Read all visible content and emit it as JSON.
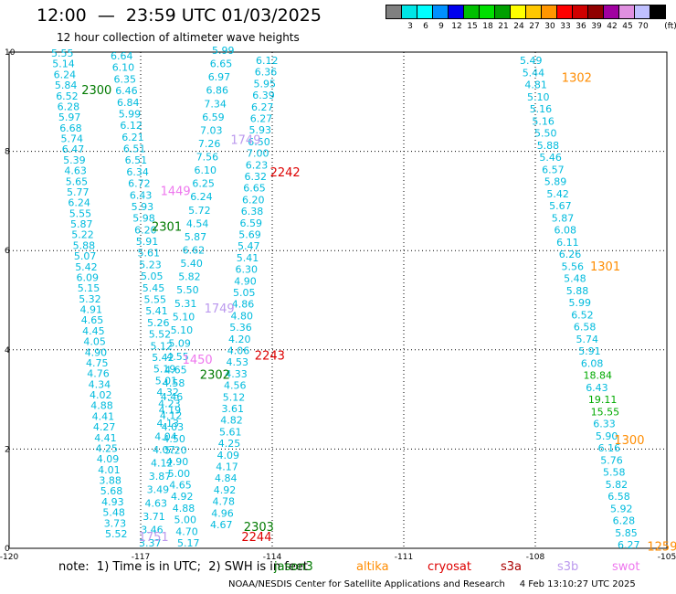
{
  "header": {
    "title": "12:00  —  23:59 UTC 01/03/2025",
    "subtitle": "12 hour collection of altimeter wave heights"
  },
  "legend": {
    "unit_label": "(ft)",
    "bins": [
      {
        "label": "",
        "color": "#808080"
      },
      {
        "label": "3",
        "color": "#00e6e6"
      },
      {
        "label": "6",
        "color": "#00ffff"
      },
      {
        "label": "9",
        "color": "#0090ff"
      },
      {
        "label": "12",
        "color": "#0000ee"
      },
      {
        "label": "15",
        "color": "#00c000"
      },
      {
        "label": "18",
        "color": "#00e000"
      },
      {
        "label": "21",
        "color": "#00a000"
      },
      {
        "label": "24",
        "color": "#ffff00"
      },
      {
        "label": "27",
        "color": "#ffc800"
      },
      {
        "label": "30",
        "color": "#ff9600"
      },
      {
        "label": "33",
        "color": "#ff0000"
      },
      {
        "label": "36",
        "color": "#d00000"
      },
      {
        "label": "39",
        "color": "#900000"
      },
      {
        "label": "42",
        "color": "#a000a0"
      },
      {
        "label": "45",
        "color": "#e090e0"
      },
      {
        "label": "70",
        "color": "#c0c0ff"
      },
      {
        "label": "",
        "color": "#000000"
      }
    ]
  },
  "axes": {
    "x_ticks": [
      "-120",
      "-117",
      "-114",
      "-111",
      "-108",
      "-105"
    ],
    "y_ticks": [
      "0",
      "2",
      "4",
      "6",
      "8",
      "10"
    ]
  },
  "colors": {
    "swh": "#00bbdd",
    "pass_green": "#007a00",
    "pass_red": "#dd0000",
    "pass_orange": "#ff8c00",
    "pass_pink": "#ee77ee",
    "pass_lavender": "#bb99ee",
    "high_green": "#00aa00"
  },
  "track_labels": {
    "left": [
      "5.55",
      "5.14",
      "6.24",
      "5.84",
      "6.52",
      "6.28",
      "5.97",
      "6.68",
      "5.74",
      "6.47",
      "5.39",
      "4.63",
      "5.65",
      "5.77",
      "6.24",
      "5.55",
      "5.87",
      "5.22",
      "5.88",
      "5.07",
      "5.42",
      "6.09",
      "5.15",
      "5.32",
      "4.91",
      "4.65",
      "4.45",
      "4.05",
      "4.90",
      "4.75",
      "4.76",
      "4.34",
      "4.02",
      "4.88",
      "4.41",
      "4.27",
      "4.41",
      "4.25",
      "4.09",
      "4.01",
      "3.88",
      "5.68",
      "4.93",
      "5.48",
      "3.73",
      "5.52"
    ],
    "middle": [
      "6.64",
      "6.10",
      "6.35",
      "6.46",
      "6.84",
      "5.99",
      "6.12",
      "6.21",
      "6.51",
      "6.51",
      "6.34",
      "6.72",
      "6.43",
      "5.93",
      "5.98",
      "6.20",
      "5.91",
      "5.61",
      "5.23",
      "5.05",
      "5.45",
      "5.55",
      "5.41",
      "5.26",
      "5.52",
      "5.12",
      "5.42",
      "5.19",
      "5.01",
      "4.32",
      "4.23",
      "4.12",
      "4.03",
      "4.50",
      "5.20",
      "4.90",
      "5.00",
      "4.65",
      "4.92",
      "4.88",
      "5.00",
      "4.70",
      "5.17"
    ],
    "center": [
      "5.99",
      "6.65",
      "6.97",
      "6.86",
      "7.34",
      "6.59",
      "7.03",
      "7.26",
      "7.56",
      "6.10",
      "6.25",
      "6.24",
      "5.72",
      "4.54",
      "5.87",
      "6.62",
      "5.40",
      "5.82",
      "5.50",
      "5.31",
      "5.10",
      "5.10",
      "5.09",
      "4.55",
      "4.65",
      "4.58",
      "4.46",
      "4.19",
      "4.13",
      "4.04",
      "4.07",
      "4.12",
      "3.87",
      "3.49",
      "4.63",
      "3.71",
      "3.46",
      "3.37"
    ],
    "right": [
      "6.12",
      "6.36",
      "5.95",
      "6.39",
      "6.27",
      "6.27",
      "5.93",
      "6.50",
      "7.00",
      "6.23",
      "6.32",
      "6.65",
      "6.20",
      "6.38",
      "6.59",
      "5.69",
      "5.47",
      "5.41",
      "6.30",
      "4.90",
      "5.05",
      "4.86",
      "4.80",
      "5.36",
      "4.20",
      "4.06",
      "4.53",
      "4.33",
      "4.56",
      "5.12",
      "3.61",
      "4.82",
      "5.61",
      "4.25",
      "4.09",
      "4.17",
      "4.84",
      "4.92",
      "4.78",
      "4.96",
      "4.67"
    ],
    "east": [
      "5.49",
      "5.44",
      "4.81",
      "5.10",
      "5.16",
      "5.16",
      "5.50",
      "5.88",
      "5.46",
      "6.57",
      "5.89",
      "5.42",
      "5.67",
      "5.87",
      "6.08",
      "6.11",
      "6.26",
      "5.56",
      "5.48",
      "5.88",
      "5.99",
      "6.52",
      "6.58",
      "5.74",
      "5.91",
      "6.08",
      "18.84",
      "6.43",
      "19.11",
      "15.55",
      "6.33",
      "5.90",
      "6.16",
      "5.76",
      "5.58",
      "5.82",
      "6.58",
      "5.92",
      "6.28",
      "5.85",
      "6.27"
    ]
  },
  "pass_labels": [
    {
      "text": "2300",
      "lon": -118.35,
      "lat": 9.15,
      "color": "green"
    },
    {
      "text": "2301",
      "lon": -116.75,
      "lat": 6.4,
      "color": "green"
    },
    {
      "text": "2302",
      "lon": -115.65,
      "lat": 3.42,
      "color": "green"
    },
    {
      "text": "2303",
      "lon": -114.65,
      "lat": 0.35,
      "color": "green"
    },
    {
      "text": "1449",
      "lon": -116.55,
      "lat": 7.12,
      "color": "pink"
    },
    {
      "text": "1450",
      "lon": -116.05,
      "lat": 3.72,
      "color": "pink"
    },
    {
      "text": "1749",
      "lon": -114.95,
      "lat": 8.15,
      "color": "lavender"
    },
    {
      "text": "1749",
      "lon": -115.55,
      "lat": 4.75,
      "color": "lavender"
    },
    {
      "text": "1751",
      "lon": -117.05,
      "lat": 0.15,
      "color": "lavender"
    },
    {
      "text": "2242",
      "lon": -114.05,
      "lat": 7.5,
      "color": "red"
    },
    {
      "text": "2243",
      "lon": -114.4,
      "lat": 3.8,
      "color": "red"
    },
    {
      "text": "2244",
      "lon": -114.7,
      "lat": 0.15,
      "color": "red"
    },
    {
      "text": "1302",
      "lon": -107.4,
      "lat": 9.4,
      "color": "orange"
    },
    {
      "text": "1301",
      "lon": -106.75,
      "lat": 5.6,
      "color": "orange"
    },
    {
      "text": "1300",
      "lon": -106.2,
      "lat": 2.1,
      "color": "orange"
    },
    {
      "text": "1259",
      "lon": -105.45,
      "lat": -0.05,
      "color": "orange"
    }
  ],
  "note": "note:  1) Time is in UTC;  2) SWH is in feet",
  "satellites": [
    {
      "name": "jason3",
      "color": "#007a00"
    },
    {
      "name": "altika",
      "color": "#ff8c00"
    },
    {
      "name": "cryosat",
      "color": "#dd0000"
    },
    {
      "name": "s3a",
      "color": "#aa0000"
    },
    {
      "name": "s3b",
      "color": "#bb99ee"
    },
    {
      "name": "swot",
      "color": "#ee77ee"
    }
  ],
  "footer": "NOAA/NESDIS Center for Satellite Applications and Research     4 Feb 13:10:27 UTC 2025"
}
